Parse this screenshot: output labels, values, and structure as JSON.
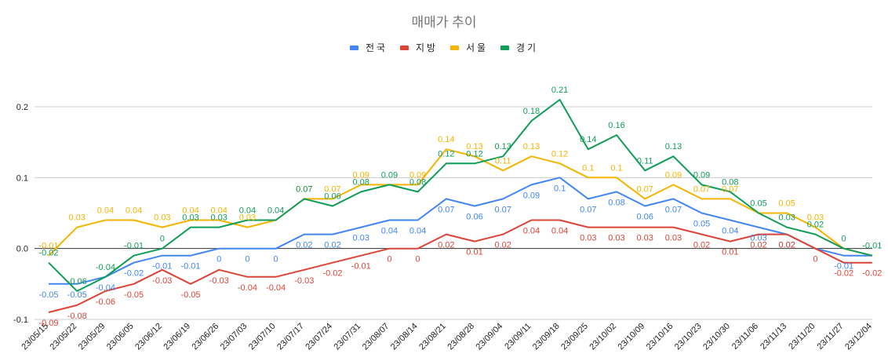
{
  "chart_data": {
    "type": "line",
    "title": "매매가 추이",
    "xlabel": "",
    "ylabel": "",
    "ylim": [
      -0.1,
      0.2
    ],
    "yticks": [
      -0.1,
      0.0,
      0.1,
      0.2
    ],
    "ytick_labels": [
      "-0.1",
      "0.0",
      "0.1",
      "0.2"
    ],
    "legend_position": "top-center",
    "grid": true,
    "categories": [
      "23/05/15",
      "23/05/22",
      "23/05/29",
      "23/06/05",
      "23/06/12",
      "23/06/19",
      "23/06/26",
      "23/07/03",
      "23/07/10",
      "23/07/17",
      "23/07/24",
      "23/07/31",
      "23/08/07",
      "23/08/14",
      "23/08/21",
      "23/08/28",
      "23/09/04",
      "23/09/11",
      "23/09/18",
      "23/09/25",
      "23/10/02",
      "23/10/09",
      "23/10/16",
      "23/10/23",
      "23/10/30",
      "23/11/06",
      "23/11/13",
      "23/11/20",
      "23/11/27",
      "23/12/04"
    ],
    "series": [
      {
        "name": "전국",
        "color": "#4285f4",
        "values": [
          -0.05,
          -0.05,
          -0.04,
          -0.02,
          -0.01,
          -0.01,
          0,
          0,
          0,
          0.02,
          0.02,
          0.03,
          0.04,
          0.04,
          0.07,
          0.06,
          0.07,
          0.09,
          0.1,
          0.07,
          0.08,
          0.06,
          0.07,
          0.05,
          0.04,
          0.03,
          0.02,
          0,
          -0.01,
          -0.01
        ],
        "labels": [
          "-0.05",
          "-0.05",
          "-0.04",
          "-0.02",
          "-0.01",
          "-0.01",
          "0",
          "0",
          "0",
          "0.02",
          "0.02",
          "0.03",
          "0.04",
          "0.04",
          "0.07",
          "0.06",
          "0.07",
          "0.09",
          "0.1",
          "0.07",
          "0.08",
          "0.06",
          "0.07",
          "0.05",
          "0.04",
          "0.03",
          "0.02",
          "",
          "-0.01",
          ""
        ]
      },
      {
        "name": "지방",
        "color": "#db4437",
        "values": [
          -0.09,
          -0.08,
          -0.06,
          -0.05,
          -0.03,
          -0.05,
          -0.03,
          -0.04,
          -0.04,
          -0.03,
          -0.02,
          -0.01,
          0,
          0,
          0.02,
          0.01,
          0.02,
          0.04,
          0.04,
          0.03,
          0.03,
          0.03,
          0.03,
          0.02,
          0.01,
          0.02,
          0.02,
          0,
          -0.02,
          -0.02
        ],
        "labels": [
          "-0.09",
          "-0.08",
          "-0.06",
          "-0.05",
          "-0.03",
          "-0.05",
          "-0.03",
          "-0.04",
          "-0.04",
          "-0.03",
          "-0.02",
          "-0.01",
          "0",
          "0",
          "0.02",
          "0.01",
          "0.02",
          "0.04",
          "0.04",
          "0.03",
          "0.03",
          "0.03",
          "0.03",
          "0.02",
          "0.01",
          "0.02",
          "0.02",
          "0",
          "-0.02",
          "-0.02"
        ]
      },
      {
        "name": "서울",
        "color": "#f4b400",
        "values": [
          -0.01,
          0.03,
          0.04,
          0.04,
          0.03,
          0.04,
          0.04,
          0.03,
          0.04,
          0.07,
          0.07,
          0.09,
          0.09,
          0.09,
          0.14,
          0.13,
          0.11,
          0.13,
          0.12,
          0.1,
          0.1,
          0.07,
          0.09,
          0.07,
          0.07,
          0.05,
          0.05,
          0.03,
          0,
          -0.01
        ],
        "labels": [
          "-0.01",
          "0.03",
          "0.04",
          "0.04",
          "0.03",
          "0.04",
          "0.04",
          "0.03",
          "",
          "0.07",
          "0.07",
          "0.09",
          "",
          "0.09",
          "0.14",
          "0.13",
          "0.11",
          "0.13",
          "0.12",
          "0.1",
          "0.1",
          "0.07",
          "0.09",
          "0.07",
          "0.07",
          "",
          "0.05",
          "0.03",
          "",
          ""
        ]
      },
      {
        "name": "경기",
        "color": "#0f9d58",
        "values": [
          -0.02,
          -0.06,
          -0.04,
          -0.01,
          0,
          0.03,
          0.03,
          0.04,
          0.04,
          0.07,
          0.06,
          0.08,
          0.09,
          0.08,
          0.12,
          0.12,
          0.13,
          0.18,
          0.21,
          0.14,
          0.16,
          0.11,
          0.13,
          0.09,
          0.08,
          0.05,
          0.03,
          0.02,
          0,
          -0.01
        ],
        "labels": [
          "-0.02",
          "-0.06",
          "-0.04",
          "-0.01",
          "0",
          "0.03",
          "0.03",
          "0.04",
          "0.04",
          "0.07",
          "0.06",
          "0.08",
          "0.09",
          "0.08",
          "0.12",
          "0.12",
          "0.13",
          "0.18",
          "0.21",
          "0.14",
          "0.16",
          "0.11",
          "0.13",
          "0.09",
          "0.08",
          "0.05",
          "0.03",
          "0.02",
          "0",
          "-0.01"
        ]
      }
    ]
  }
}
